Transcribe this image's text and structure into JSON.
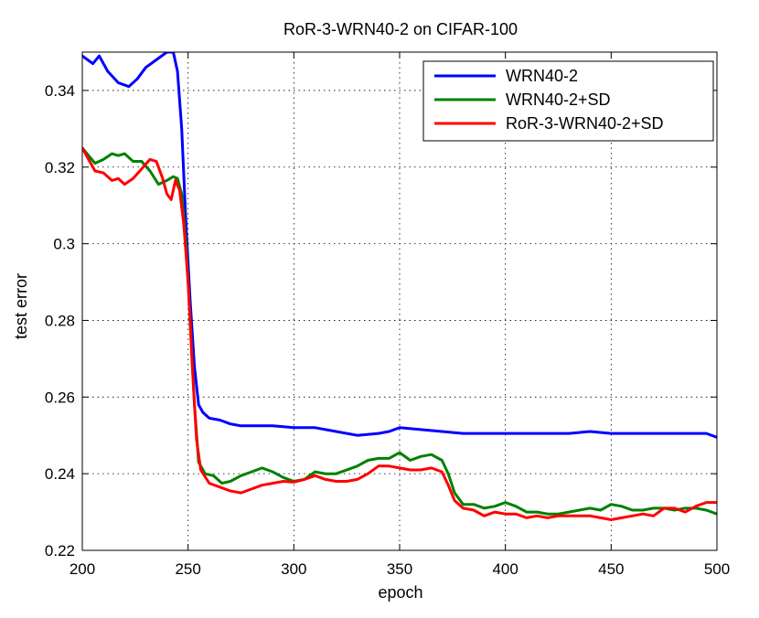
{
  "chart_data": {
    "type": "line",
    "title": "RoR-3-WRN40-2 on CIFAR-100",
    "xlabel": "epoch",
    "ylabel": "test error",
    "xlim": [
      200,
      500
    ],
    "ylim": [
      0.22,
      0.35
    ],
    "xticks": [
      200,
      250,
      300,
      350,
      400,
      450,
      500
    ],
    "yticks": [
      0.22,
      0.24,
      0.26,
      0.28,
      0.3,
      0.32,
      0.34
    ],
    "ytick_labels": [
      "0.22",
      "0.24",
      "0.26",
      "0.28",
      "0.3",
      "0.32",
      "0.34"
    ],
    "grid": true,
    "legend_position": "top-right",
    "series": [
      {
        "name": "WRN40-2",
        "color": "#0000ff",
        "x": [
          200,
          205,
          208,
          212,
          217,
          222,
          226,
          230,
          235,
          240,
          243,
          245,
          247,
          249,
          251,
          253,
          255,
          257,
          260,
          265,
          270,
          275,
          280,
          290,
          300,
          310,
          320,
          330,
          340,
          345,
          350,
          360,
          370,
          380,
          390,
          400,
          410,
          420,
          430,
          440,
          450,
          460,
          470,
          480,
          490,
          495,
          500
        ],
        "y": [
          0.349,
          0.347,
          0.349,
          0.345,
          0.342,
          0.341,
          0.343,
          0.346,
          0.348,
          0.35,
          0.35,
          0.345,
          0.33,
          0.305,
          0.285,
          0.268,
          0.258,
          0.256,
          0.2545,
          0.254,
          0.253,
          0.2525,
          0.2525,
          0.2525,
          0.252,
          0.252,
          0.251,
          0.25,
          0.2505,
          0.251,
          0.252,
          0.2515,
          0.251,
          0.2505,
          0.2505,
          0.2505,
          0.2505,
          0.2505,
          0.2505,
          0.251,
          0.2505,
          0.2505,
          0.2505,
          0.2505,
          0.2505,
          0.2505,
          0.2495
        ]
      },
      {
        "name": "WRN40-2+SD",
        "color": "#008000",
        "x": [
          200,
          203,
          206,
          210,
          214,
          217,
          220,
          224,
          228,
          232,
          236,
          240,
          243,
          245,
          247,
          249,
          251,
          253,
          255,
          258,
          262,
          266,
          270,
          275,
          280,
          285,
          290,
          295,
          300,
          305,
          310,
          315,
          320,
          325,
          330,
          335,
          340,
          345,
          350,
          355,
          360,
          365,
          370,
          373,
          376,
          380,
          385,
          390,
          395,
          400,
          405,
          410,
          415,
          420,
          425,
          430,
          435,
          440,
          445,
          450,
          455,
          460,
          465,
          470,
          475,
          480,
          485,
          490,
          495,
          500
        ],
        "y": [
          0.325,
          0.323,
          0.321,
          0.322,
          0.3235,
          0.323,
          0.3235,
          0.3215,
          0.3215,
          0.319,
          0.3155,
          0.3165,
          0.3175,
          0.317,
          0.313,
          0.3,
          0.28,
          0.258,
          0.243,
          0.24,
          0.2395,
          0.2375,
          0.238,
          0.2395,
          0.2405,
          0.2415,
          0.2405,
          0.239,
          0.238,
          0.2385,
          0.2405,
          0.24,
          0.24,
          0.241,
          0.242,
          0.2435,
          0.244,
          0.244,
          0.2455,
          0.2435,
          0.2445,
          0.245,
          0.2435,
          0.24,
          0.235,
          0.232,
          0.232,
          0.231,
          0.2315,
          0.2325,
          0.2315,
          0.23,
          0.23,
          0.2295,
          0.2295,
          0.23,
          0.2305,
          0.231,
          0.2305,
          0.232,
          0.2315,
          0.2305,
          0.2305,
          0.231,
          0.231,
          0.2305,
          0.231,
          0.231,
          0.2305,
          0.2295
        ]
      },
      {
        "name": "RoR-3-WRN40-2+SD",
        "color": "#ff0000",
        "x": [
          200,
          203,
          206,
          210,
          214,
          217,
          220,
          224,
          228,
          232,
          235,
          238,
          240,
          242,
          244,
          246,
          248,
          250,
          252,
          254,
          256,
          260,
          265,
          270,
          275,
          280,
          285,
          290,
          295,
          300,
          305,
          310,
          315,
          320,
          325,
          330,
          335,
          340,
          345,
          350,
          355,
          360,
          365,
          370,
          373,
          376,
          380,
          385,
          390,
          395,
          400,
          405,
          410,
          415,
          420,
          425,
          430,
          435,
          440,
          445,
          450,
          455,
          460,
          465,
          470,
          475,
          480,
          485,
          490,
          495,
          500
        ],
        "y": [
          0.325,
          0.322,
          0.319,
          0.3185,
          0.3165,
          0.317,
          0.3155,
          0.317,
          0.3195,
          0.322,
          0.3215,
          0.317,
          0.313,
          0.3115,
          0.3165,
          0.314,
          0.305,
          0.29,
          0.268,
          0.249,
          0.241,
          0.2375,
          0.2365,
          0.2355,
          0.235,
          0.236,
          0.237,
          0.2375,
          0.238,
          0.2378,
          0.2385,
          0.2395,
          0.2385,
          0.238,
          0.238,
          0.2385,
          0.24,
          0.242,
          0.242,
          0.2415,
          0.241,
          0.241,
          0.2415,
          0.2405,
          0.237,
          0.233,
          0.231,
          0.2305,
          0.229,
          0.23,
          0.2295,
          0.2295,
          0.2285,
          0.229,
          0.2285,
          0.229,
          0.229,
          0.229,
          0.229,
          0.2285,
          0.228,
          0.2285,
          0.229,
          0.2295,
          0.229,
          0.231,
          0.231,
          0.23,
          0.2315,
          0.2325,
          0.2325
        ]
      }
    ]
  }
}
